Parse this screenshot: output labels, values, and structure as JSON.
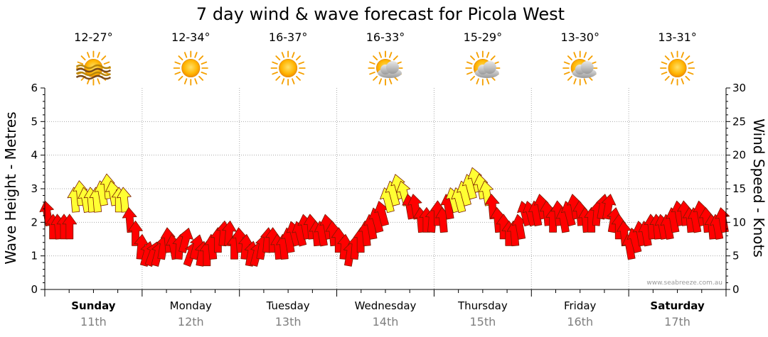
{
  "chart_data": {
    "type": "line",
    "title": "7 day wind & wave forecast for Picola West",
    "ylabel": "Wave Height - Metres",
    "y2label": "Wind Speed - Knots",
    "ylim": [
      0,
      6
    ],
    "y2lim": [
      0,
      30
    ],
    "yticks": [
      "0",
      "1",
      "2",
      "3",
      "4",
      "5",
      "6"
    ],
    "y2ticks": [
      "0",
      "5",
      "10",
      "15",
      "20",
      "25",
      "30"
    ],
    "grid": true,
    "credit": "www.seabreeze.com.au",
    "days": [
      {
        "name": "Sunday",
        "date": "11th",
        "temp": "12-27°",
        "icon": "sun-waves-icon",
        "bold": true
      },
      {
        "name": "Monday",
        "date": "12th",
        "temp": "12-34°",
        "icon": "sun-icon",
        "bold": false
      },
      {
        "name": "Tuesday",
        "date": "13th",
        "temp": "16-37°",
        "icon": "sun-icon",
        "bold": false
      },
      {
        "name": "Wednesday",
        "date": "14th",
        "temp": "16-33°",
        "icon": "sun-cloud-icon",
        "bold": false
      },
      {
        "name": "Thursday",
        "date": "15th",
        "temp": "15-29°",
        "icon": "sun-cloud-icon",
        "bold": false
      },
      {
        "name": "Friday",
        "date": "16th",
        "temp": "13-30°",
        "icon": "sun-cloud-icon",
        "bold": false
      },
      {
        "name": "Saturday",
        "date": "17th",
        "temp": "13-31°",
        "icon": "sun-icon",
        "bold": true
      }
    ],
    "colors": {
      "strong": "#ffff33",
      "moderate": "#ff0000",
      "outline": "#7a1a00",
      "grid": "#aaaaaa"
    },
    "wind_knots": [
      11,
      9,
      9,
      9,
      9,
      13,
      14,
      13,
      13,
      13,
      14,
      15,
      14,
      13,
      13,
      10,
      8,
      6,
      5,
      5,
      5,
      6,
      7,
      6,
      6,
      7,
      5,
      6,
      5,
      5,
      6,
      7,
      8,
      8,
      6,
      7,
      6,
      5,
      5,
      6,
      7,
      7,
      6,
      6,
      7,
      8,
      8,
      9,
      9,
      8,
      8,
      9,
      8,
      7,
      6,
      5,
      6,
      7,
      8,
      9,
      10,
      11,
      13,
      14,
      15,
      14,
      12,
      12,
      10,
      10,
      10,
      11,
      10,
      12,
      13,
      13,
      14,
      15,
      16,
      15,
      14,
      12,
      10,
      9,
      8,
      8,
      9,
      11,
      11,
      11,
      12,
      11,
      10,
      11,
      10,
      11,
      12,
      11,
      10,
      10,
      11,
      12,
      12,
      10,
      9,
      8,
      6,
      7,
      8,
      8,
      9,
      9,
      9,
      9,
      10,
      11,
      11,
      10,
      10,
      11,
      10,
      9,
      9,
      10
    ],
    "wind_dir_deg": [
      35,
      45,
      40,
      45,
      45,
      40,
      40,
      35,
      40,
      40,
      35,
      40,
      35,
      45,
      40,
      40,
      45,
      50,
      60,
      65,
      60,
      55,
      40,
      35,
      50,
      60,
      65,
      60,
      55,
      45,
      40,
      45,
      50,
      50,
      45,
      40,
      50,
      55,
      60,
      55,
      50,
      45,
      40,
      40,
      35,
      30,
      30,
      35,
      40,
      40,
      35,
      35,
      40,
      45,
      50,
      55,
      50,
      45,
      40,
      35,
      30,
      30,
      30,
      30,
      30,
      30,
      35,
      35,
      40,
      45,
      50,
      45,
      40,
      35,
      30,
      30,
      30,
      30,
      30,
      35,
      35,
      40,
      40,
      45,
      45,
      40,
      35,
      30,
      30,
      35,
      35,
      40,
      45,
      40,
      35,
      30,
      35,
      40,
      40,
      45,
      50,
      55,
      55,
      55,
      45,
      40,
      35,
      30,
      35,
      35,
      40,
      40,
      35,
      35,
      35,
      35,
      40,
      40,
      35,
      35,
      40,
      40,
      35,
      35
    ]
  }
}
